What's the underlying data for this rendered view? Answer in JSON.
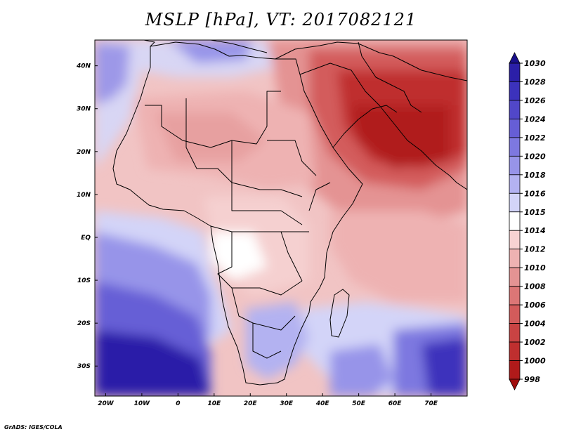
{
  "title": "MSLP [hPa], VT: 2017082121",
  "credit": "GrADS: IGES/COLA",
  "map": {
    "lon_range": [
      -23,
      80
    ],
    "lat_range": [
      -37,
      46
    ],
    "lon_ticks": [
      "20W",
      "10W",
      "0",
      "10E",
      "20E",
      "30E",
      "40E",
      "50E",
      "60E",
      "70E"
    ],
    "lat_ticks": [
      "40N",
      "30N",
      "20N",
      "10N",
      "EQ",
      "10S",
      "20S",
      "30S"
    ]
  },
  "colorbar": {
    "labels": [
      "1030",
      "1028",
      "1026",
      "1024",
      "1022",
      "1020",
      "1018",
      "1016",
      "1015",
      "1014",
      "1012",
      "1010",
      "1008",
      "1006",
      "1004",
      "1002",
      "1000",
      "998"
    ],
    "colors": [
      "#1a0f8c",
      "#2b1fa8",
      "#3c32bc",
      "#5147c9",
      "#665ed6",
      "#7d78e0",
      "#9794e9",
      "#b3b2f1",
      "#d3d4f8",
      "#ffffff",
      "#f7d2d2",
      "#eeb2b2",
      "#e49393",
      "#dc7676",
      "#d35b5b",
      "#c94343",
      "#bf2f2f",
      "#b01a1a",
      "#a00e0e"
    ]
  }
}
